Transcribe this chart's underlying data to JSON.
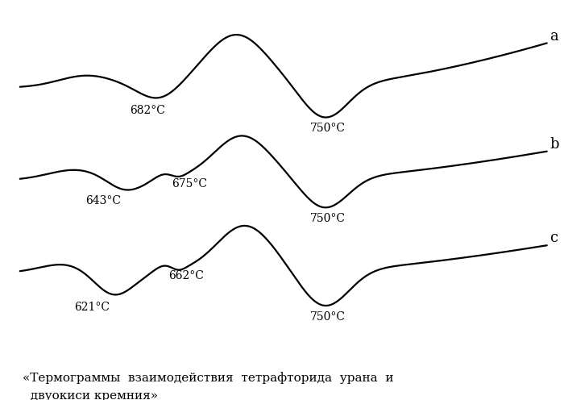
{
  "bg_color": "#ffffff",
  "line_color": "#000000",
  "line_width": 1.6,
  "label_a": "a",
  "label_b": "b",
  "label_c": "c",
  "title_line1": "«Термограммы  взаимодействия  тетрафторида  урана  и",
  "title_line2": "  двуокиси кремния»",
  "fs_ann": 10,
  "fs_label": 13,
  "fs_caption": 11
}
